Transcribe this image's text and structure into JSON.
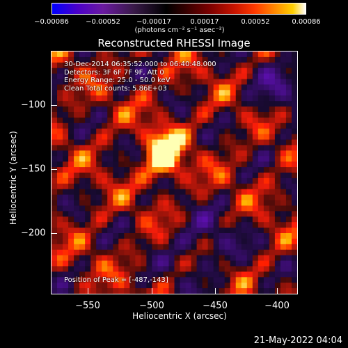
{
  "colorbar": {
    "ticks": [
      "−0.00086",
      "−0.00052",
      "−0.00017",
      "0.00017",
      "0.00052",
      "0.00086"
    ],
    "unit": "(photons cm⁻² s⁻¹ asec⁻²)",
    "range": [
      -0.00086,
      0.00086
    ],
    "colors": [
      "#0000ff",
      "#6a1aa0",
      "#000000",
      "#7a0000",
      "#ff3a00",
      "#ffd000",
      "#ffffff"
    ]
  },
  "title": "Reconstructed RHESSI Image",
  "annotations": {
    "time_range": "30-Dec-2014 06:35:52.000 to 06:40:48.000",
    "detectors": "Detectors: 3F 6F 7F 9F, Att 0",
    "energy": "Energy Range: 25.0 - 50.0 keV",
    "clean": "Clean     Total counts: 5.86E+03",
    "peak": "Position of Peak = [-487,-143]"
  },
  "axes": {
    "xlabel": "Heliocentric X (arcsec)",
    "ylabel": "Heliocentric Y (arcsec)",
    "xticks": [
      "−550",
      "−500",
      "−450",
      "−400"
    ],
    "yticks": [
      "−100",
      "−150",
      "−200"
    ],
    "xrange": [
      -575,
      -383
    ],
    "yrange": [
      -249,
      -64
    ]
  },
  "peak": {
    "x": -487,
    "y": -143
  },
  "timestamp": "21-May-2022 04:04"
}
